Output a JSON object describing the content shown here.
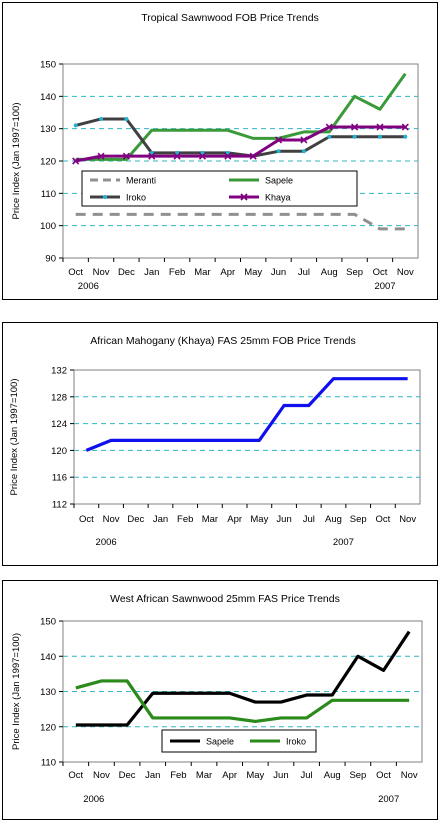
{
  "chart_data": [
    {
      "type": "line",
      "title": "Tropical Sawnwood FOB Price Trends",
      "ylabel": "Price Index (Jan 1997=100)",
      "xlabel": "",
      "categories": [
        "Oct",
        "Nov",
        "Dec",
        "Jan",
        "Feb",
        "Mar",
        "Apr",
        "May",
        "Jun",
        "Jul",
        "Aug",
        "Sep",
        "Oct",
        "Nov"
      ],
      "year_labels": [
        {
          "text": "2006",
          "index": 0.5
        },
        {
          "text": "2007",
          "index": 12.2
        }
      ],
      "ylim": [
        90,
        150
      ],
      "yticks": [
        90,
        100,
        110,
        120,
        130,
        140,
        150
      ],
      "grid": true,
      "legend": "bottom-center",
      "series": [
        {
          "name": "Meranti",
          "color": "#909090",
          "style": "dashed",
          "marker": "none",
          "values": [
            103.5,
            103.5,
            103.5,
            103.5,
            103.5,
            103.5,
            103.5,
            103.5,
            103.5,
            103.5,
            103.5,
            103.5,
            99,
            99
          ]
        },
        {
          "name": "Sapele",
          "color": "#3a9a3a",
          "style": "solid",
          "marker": "none",
          "values": [
            120.5,
            120.5,
            120.5,
            129.5,
            129.5,
            129.5,
            129.5,
            127,
            127,
            129,
            129,
            140,
            136,
            147
          ]
        },
        {
          "name": "Iroko",
          "color": "#404040",
          "style": "solid",
          "marker": "dot",
          "values": [
            131,
            133,
            133,
            122.5,
            122.5,
            122.5,
            122.5,
            121.5,
            123,
            123,
            127.5,
            127.5,
            127.5,
            127.5
          ]
        },
        {
          "name": "Khaya",
          "color": "#800080",
          "style": "solid",
          "marker": "x",
          "values": [
            120,
            121.5,
            121.5,
            121.5,
            121.5,
            121.5,
            121.5,
            121.5,
            126.5,
            126.5,
            130.5,
            130.5,
            130.5,
            130.5
          ]
        }
      ]
    },
    {
      "type": "line",
      "title": "African Mahogany (Khaya) FAS 25mm FOB Price Trends",
      "ylabel": "Price Index (Jan 1997=100)",
      "xlabel": "",
      "categories": [
        "Oct",
        "Nov",
        "Dec",
        "Jan",
        "Feb",
        "Mar",
        "Apr",
        "May",
        "Jun",
        "Jul",
        "Aug",
        "Sep",
        "Oct",
        "Nov"
      ],
      "year_labels": [
        {
          "text": "2006",
          "index": 0.8
        },
        {
          "text": "2007",
          "index": 10.4
        }
      ],
      "ylim": [
        112,
        132
      ],
      "yticks": [
        112,
        116,
        120,
        124,
        128,
        132
      ],
      "grid": true,
      "legend": "none",
      "series": [
        {
          "color": "#1010ee",
          "style": "solid",
          "marker": "none",
          "values": [
            120,
            121.5,
            121.5,
            121.5,
            121.5,
            121.5,
            121.5,
            121.5,
            126.7,
            126.7,
            130.7,
            130.7,
            130.7,
            130.7
          ]
        }
      ]
    },
    {
      "type": "line",
      "title": "West African Sawnwood 25mm FAS Price Trends",
      "ylabel": "Price Index (Jan 1997=100)",
      "xlabel": "",
      "categories": [
        "Oct",
        "Nov",
        "Dec",
        "Jan",
        "Feb",
        "Mar",
        "Apr",
        "May",
        "Jun",
        "Jul",
        "Aug",
        "Sep",
        "Oct",
        "Nov"
      ],
      "year_labels": [
        {
          "text": "2006",
          "index": 0.7
        },
        {
          "text": "2007",
          "index": 12.2
        }
      ],
      "ylim": [
        110,
        150
      ],
      "yticks": [
        110,
        120,
        130,
        140,
        150
      ],
      "grid": true,
      "legend": "bottom-center",
      "series": [
        {
          "name": "Sapele",
          "color": "#000000",
          "style": "solid",
          "marker": "none",
          "values": [
            120.5,
            120.5,
            120.5,
            129.5,
            129.5,
            129.5,
            129.5,
            127,
            127,
            129,
            129,
            140,
            136,
            147
          ]
        },
        {
          "name": "Iroko",
          "color": "#2a8a1a",
          "style": "solid",
          "marker": "none",
          "values": [
            131,
            133,
            133,
            122.5,
            122.5,
            122.5,
            122.5,
            121.5,
            122.5,
            122.5,
            127.5,
            127.5,
            127.5,
            127.5
          ]
        }
      ]
    }
  ]
}
